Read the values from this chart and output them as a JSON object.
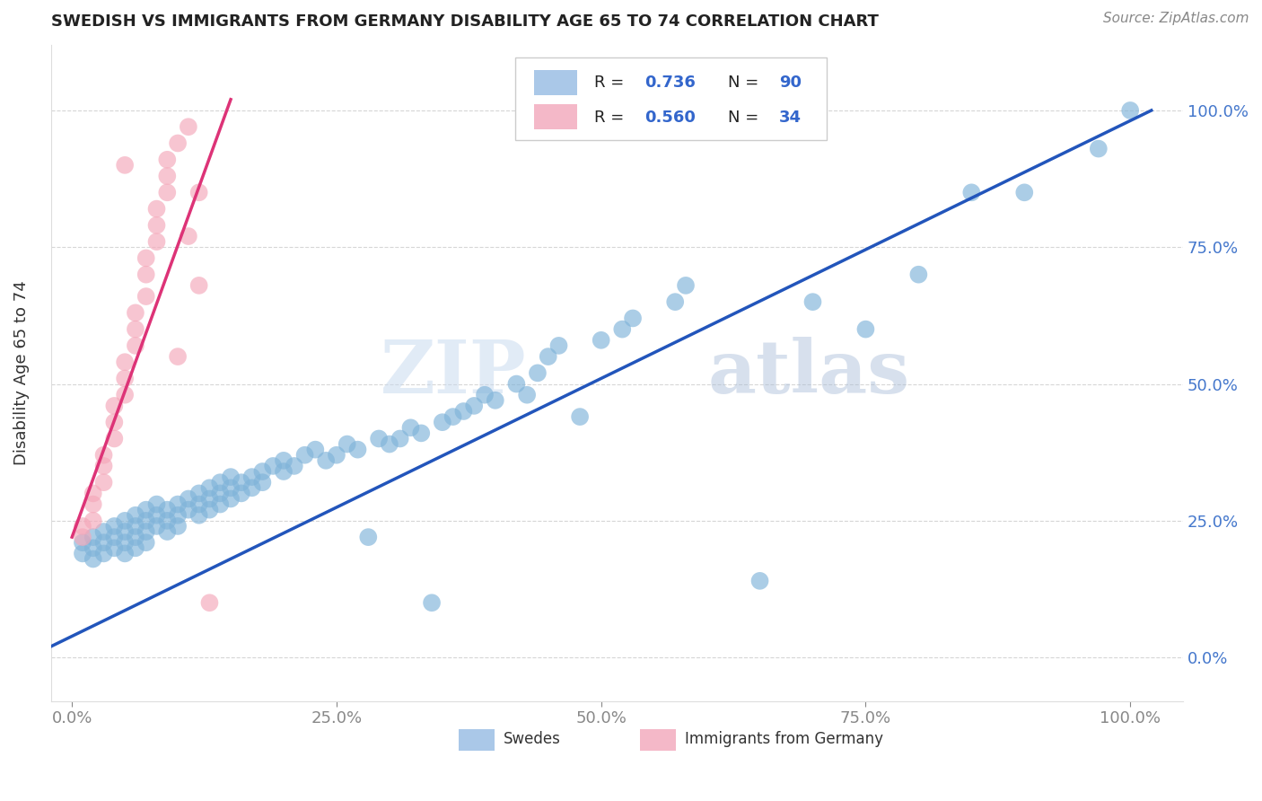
{
  "title": "SWEDISH VS IMMIGRANTS FROM GERMANY DISABILITY AGE 65 TO 74 CORRELATION CHART",
  "source": "Source: ZipAtlas.com",
  "ylabel": "Disability Age 65 to 74",
  "xlim": [
    -0.02,
    1.05
  ],
  "ylim": [
    -0.08,
    1.12
  ],
  "x_ticks": [
    0.0,
    0.25,
    0.5,
    0.75,
    1.0
  ],
  "x_tick_labels": [
    "0.0%",
    "25.0%",
    "50.0%",
    "75.0%",
    "100.0%"
  ],
  "y_ticks": [
    0.0,
    0.25,
    0.5,
    0.75,
    1.0
  ],
  "y_tick_labels": [
    "0.0%",
    "25.0%",
    "50.0%",
    "75.0%",
    "100.0%"
  ],
  "watermark_zip": "ZIP",
  "watermark_atlas": "atlas",
  "blue_color": "#7fb3d9",
  "pink_color": "#f4a7b9",
  "blue_line_color": "#2255bb",
  "pink_line_color": "#dd3377",
  "legend_box_blue": "#aac8e8",
  "legend_box_pink": "#f4b8c8",
  "blue_line_x": [
    -0.02,
    1.02
  ],
  "blue_line_y": [
    0.02,
    1.0
  ],
  "pink_line_x": [
    0.0,
    0.15
  ],
  "pink_line_y": [
    0.22,
    1.02
  ],
  "blue_points": [
    [
      0.01,
      0.21
    ],
    [
      0.01,
      0.19
    ],
    [
      0.02,
      0.22
    ],
    [
      0.02,
      0.2
    ],
    [
      0.02,
      0.18
    ],
    [
      0.03,
      0.23
    ],
    [
      0.03,
      0.21
    ],
    [
      0.03,
      0.19
    ],
    [
      0.04,
      0.24
    ],
    [
      0.04,
      0.22
    ],
    [
      0.04,
      0.2
    ],
    [
      0.05,
      0.25
    ],
    [
      0.05,
      0.23
    ],
    [
      0.05,
      0.21
    ],
    [
      0.05,
      0.19
    ],
    [
      0.06,
      0.26
    ],
    [
      0.06,
      0.24
    ],
    [
      0.06,
      0.22
    ],
    [
      0.06,
      0.2
    ],
    [
      0.07,
      0.27
    ],
    [
      0.07,
      0.25
    ],
    [
      0.07,
      0.23
    ],
    [
      0.07,
      0.21
    ],
    [
      0.08,
      0.28
    ],
    [
      0.08,
      0.26
    ],
    [
      0.08,
      0.24
    ],
    [
      0.09,
      0.27
    ],
    [
      0.09,
      0.25
    ],
    [
      0.09,
      0.23
    ],
    [
      0.1,
      0.28
    ],
    [
      0.1,
      0.26
    ],
    [
      0.1,
      0.24
    ],
    [
      0.11,
      0.29
    ],
    [
      0.11,
      0.27
    ],
    [
      0.12,
      0.3
    ],
    [
      0.12,
      0.28
    ],
    [
      0.12,
      0.26
    ],
    [
      0.13,
      0.31
    ],
    [
      0.13,
      0.29
    ],
    [
      0.13,
      0.27
    ],
    [
      0.14,
      0.32
    ],
    [
      0.14,
      0.3
    ],
    [
      0.14,
      0.28
    ],
    [
      0.15,
      0.33
    ],
    [
      0.15,
      0.31
    ],
    [
      0.15,
      0.29
    ],
    [
      0.16,
      0.32
    ],
    [
      0.16,
      0.3
    ],
    [
      0.17,
      0.33
    ],
    [
      0.17,
      0.31
    ],
    [
      0.18,
      0.34
    ],
    [
      0.18,
      0.32
    ],
    [
      0.19,
      0.35
    ],
    [
      0.2,
      0.36
    ],
    [
      0.2,
      0.34
    ],
    [
      0.21,
      0.35
    ],
    [
      0.22,
      0.37
    ],
    [
      0.23,
      0.38
    ],
    [
      0.24,
      0.36
    ],
    [
      0.25,
      0.37
    ],
    [
      0.26,
      0.39
    ],
    [
      0.27,
      0.38
    ],
    [
      0.28,
      0.22
    ],
    [
      0.29,
      0.4
    ],
    [
      0.3,
      0.39
    ],
    [
      0.31,
      0.4
    ],
    [
      0.32,
      0.42
    ],
    [
      0.33,
      0.41
    ],
    [
      0.34,
      0.1
    ],
    [
      0.35,
      0.43
    ],
    [
      0.36,
      0.44
    ],
    [
      0.37,
      0.45
    ],
    [
      0.38,
      0.46
    ],
    [
      0.39,
      0.48
    ],
    [
      0.4,
      0.47
    ],
    [
      0.42,
      0.5
    ],
    [
      0.43,
      0.48
    ],
    [
      0.44,
      0.52
    ],
    [
      0.45,
      0.55
    ],
    [
      0.46,
      0.57
    ],
    [
      0.48,
      0.44
    ],
    [
      0.5,
      0.58
    ],
    [
      0.52,
      0.6
    ],
    [
      0.53,
      0.62
    ],
    [
      0.57,
      0.65
    ],
    [
      0.58,
      0.68
    ],
    [
      0.65,
      0.14
    ],
    [
      0.7,
      0.65
    ],
    [
      0.75,
      0.6
    ],
    [
      0.8,
      0.7
    ],
    [
      0.85,
      0.85
    ],
    [
      0.9,
      0.85
    ],
    [
      0.97,
      0.93
    ],
    [
      1.0,
      1.0
    ]
  ],
  "pink_points": [
    [
      0.01,
      0.22
    ],
    [
      0.01,
      0.24
    ],
    [
      0.02,
      0.25
    ],
    [
      0.02,
      0.28
    ],
    [
      0.02,
      0.3
    ],
    [
      0.03,
      0.32
    ],
    [
      0.03,
      0.35
    ],
    [
      0.03,
      0.37
    ],
    [
      0.04,
      0.4
    ],
    [
      0.04,
      0.43
    ],
    [
      0.04,
      0.46
    ],
    [
      0.05,
      0.48
    ],
    [
      0.05,
      0.51
    ],
    [
      0.05,
      0.54
    ],
    [
      0.06,
      0.57
    ],
    [
      0.06,
      0.6
    ],
    [
      0.06,
      0.63
    ],
    [
      0.07,
      0.66
    ],
    [
      0.07,
      0.7
    ],
    [
      0.07,
      0.73
    ],
    [
      0.08,
      0.76
    ],
    [
      0.08,
      0.79
    ],
    [
      0.08,
      0.82
    ],
    [
      0.09,
      0.85
    ],
    [
      0.09,
      0.88
    ],
    [
      0.09,
      0.91
    ],
    [
      0.1,
      0.55
    ],
    [
      0.1,
      0.94
    ],
    [
      0.11,
      0.97
    ],
    [
      0.11,
      0.77
    ],
    [
      0.12,
      0.68
    ],
    [
      0.12,
      0.85
    ],
    [
      0.13,
      0.1
    ],
    [
      0.05,
      0.9
    ]
  ]
}
